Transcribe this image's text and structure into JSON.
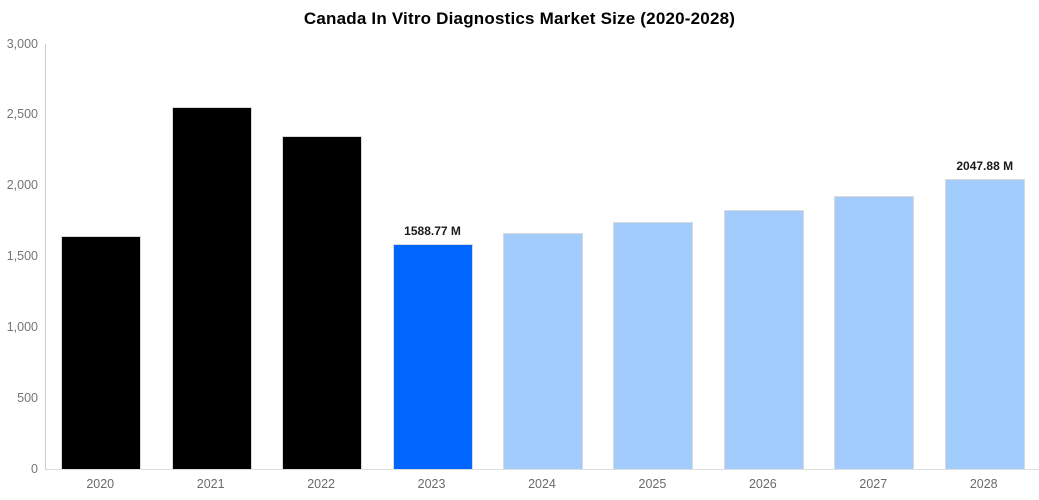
{
  "chart_data": {
    "type": "bar",
    "title": "Canada In Vitro Diagnostics Market Size (2020-2028)",
    "xlabel": "",
    "ylabel": "",
    "categories": [
      "2020",
      "2021",
      "2022",
      "2023",
      "2024",
      "2025",
      "2026",
      "2027",
      "2028"
    ],
    "values": [
      1643,
      2555,
      2353,
      1588.77,
      1664,
      1741,
      1828,
      1929,
      2047.88
    ],
    "unit": "M",
    "data_labels": [
      null,
      null,
      null,
      "1588.77 M",
      null,
      null,
      null,
      null,
      "2047.88 M"
    ],
    "bar_colors": [
      "#000000",
      "#000000",
      "#000000",
      "#0066ff",
      "#a2ccfb",
      "#a2ccfb",
      "#a2ccfb",
      "#a2ccfb",
      "#a2ccfb"
    ],
    "ylim": [
      0,
      3000
    ],
    "yticks": [
      0,
      500,
      1000,
      1500,
      2000,
      2500,
      3000
    ],
    "ytick_labels": [
      "0",
      "500",
      "1,000",
      "1,500",
      "2,000",
      "2,500",
      "3,000"
    ],
    "grid": false,
    "legend": false
  },
  "colors": {
    "background": "#ffffff",
    "bar_historic": "#000000",
    "bar_current": "#0066ff",
    "bar_forecast": "#a2ccfb",
    "bar_border": "#d9d9d9",
    "y_axis_line": "#cccccc",
    "x_axis_line": "#dddddd",
    "tick_text": "#757575",
    "title_text": "#000000",
    "value_label_text": "#1a1a1a"
  }
}
